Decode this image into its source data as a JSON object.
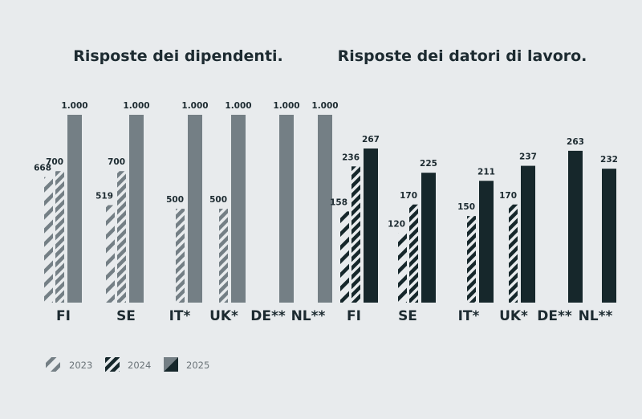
{
  "colors": {
    "background": "#e8ebed",
    "employees_fill": "#747f85",
    "employers_fill": "#16272b",
    "text": "#1d2b31",
    "legend_text": "#6b7479"
  },
  "legend": [
    {
      "label": "2023",
      "pattern": "sparse-hatch"
    },
    {
      "label": "2024",
      "pattern": "dense-hatch"
    },
    {
      "label": "2025",
      "pattern": "split"
    }
  ],
  "chart_data": [
    {
      "type": "bar",
      "title": "Risposte dei dipendenti.",
      "categories": [
        "FI",
        "SE",
        "IT*",
        "UK*",
        "DE**",
        "NL**"
      ],
      "series": [
        {
          "name": "2023",
          "values": [
            668,
            519,
            null,
            null,
            null,
            null
          ],
          "labels": [
            "668",
            "519",
            "",
            "",
            "",
            ""
          ]
        },
        {
          "name": "2024",
          "values": [
            700,
            700,
            500,
            500,
            null,
            null
          ],
          "labels": [
            "700",
            "700",
            "500",
            "500",
            "",
            ""
          ]
        },
        {
          "name": "2025",
          "values": [
            1000,
            1000,
            1000,
            1000,
            1000,
            1000
          ],
          "labels": [
            "1.000",
            "1.000",
            "1.000",
            "1.000",
            "1.000",
            "1.000"
          ]
        }
      ],
      "ylim": [
        0,
        1000
      ],
      "grid": false,
      "legend_position": "bottom-left"
    },
    {
      "type": "bar",
      "title": "Risposte dei datori di lavoro.",
      "categories": [
        "FI",
        "SE",
        "IT*",
        "UK*",
        "DE**",
        "NL**"
      ],
      "series": [
        {
          "name": "2023",
          "values": [
            158,
            120,
            null,
            null,
            null,
            null
          ],
          "labels": [
            "158",
            "120",
            "",
            "",
            "",
            ""
          ]
        },
        {
          "name": "2024",
          "values": [
            236,
            170,
            150,
            170,
            null,
            null
          ],
          "labels": [
            "236",
            "170",
            "150",
            "170",
            "",
            ""
          ]
        },
        {
          "name": "2025",
          "values": [
            267,
            225,
            211,
            237,
            263,
            232
          ],
          "labels": [
            "267",
            "225",
            "211",
            "237",
            "263",
            "232"
          ]
        }
      ],
      "ylim": [
        0,
        267
      ],
      "grid": false
    }
  ]
}
